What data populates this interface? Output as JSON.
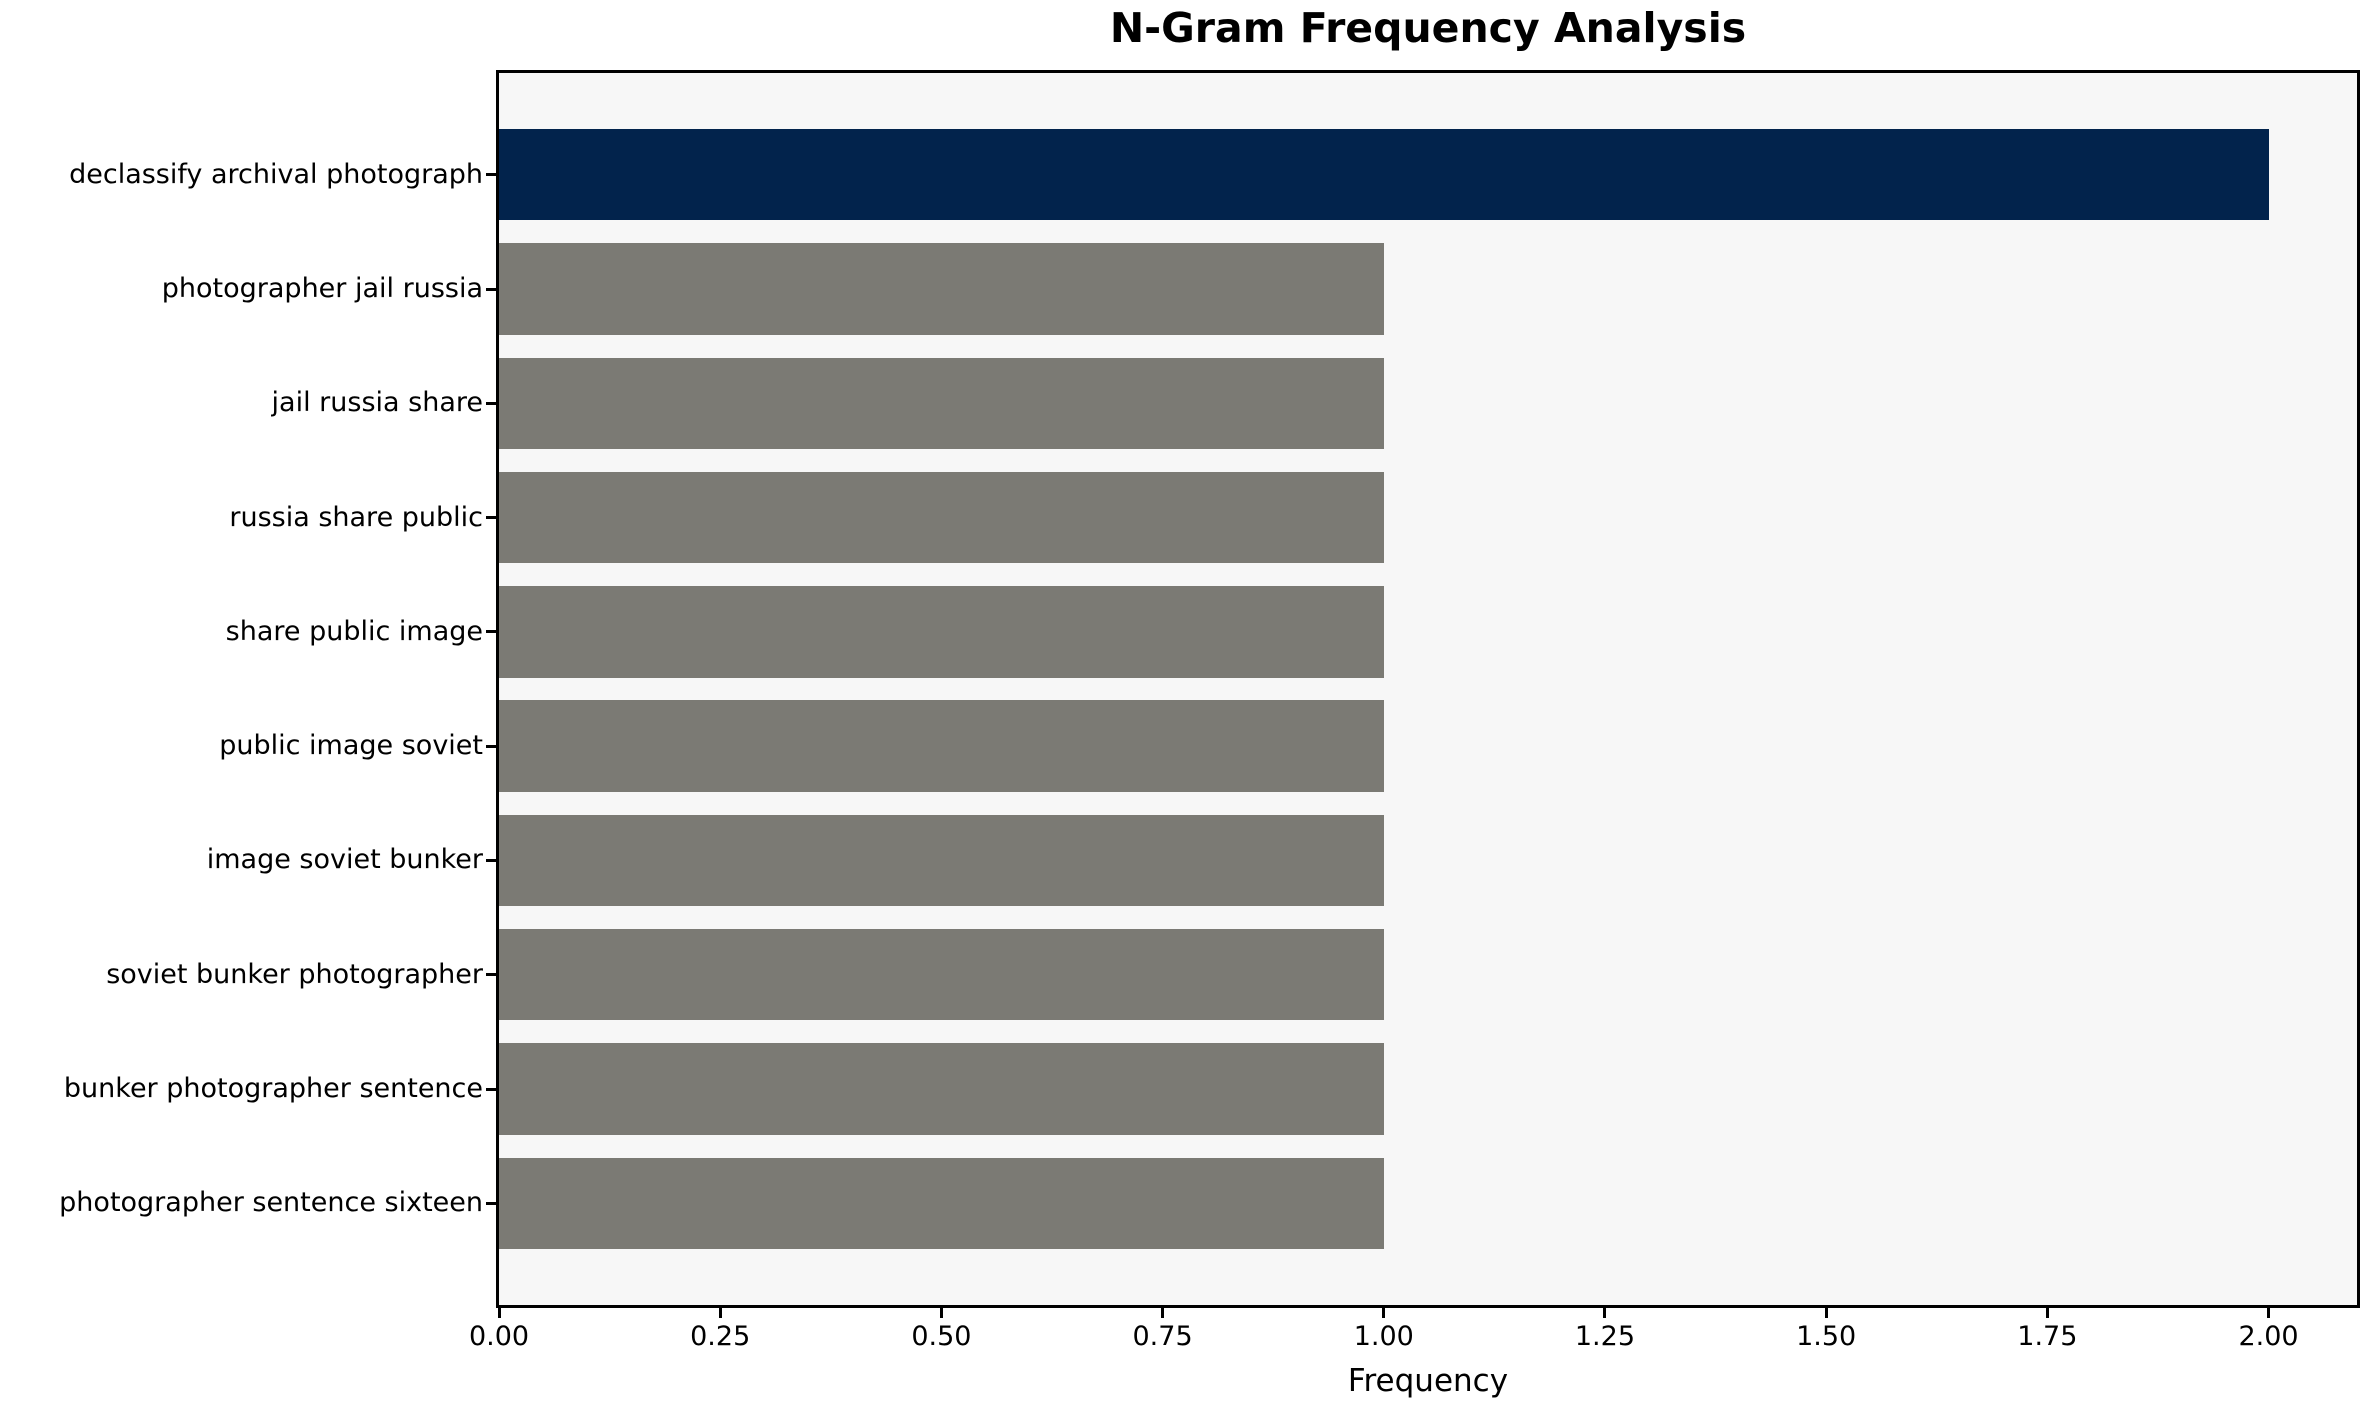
{
  "chart_data": {
    "type": "bar",
    "orientation": "horizontal",
    "title": "N-Gram Frequency Analysis",
    "xlabel": "Frequency",
    "ylabel": "",
    "categories": [
      "declassify archival photograph",
      "photographer jail russia",
      "jail russia share",
      "russia share public",
      "share public image",
      "public image soviet",
      "image soviet bunker",
      "soviet bunker photographer",
      "bunker photographer sentence",
      "photographer sentence sixteen"
    ],
    "values": [
      2.0,
      1.0,
      1.0,
      1.0,
      1.0,
      1.0,
      1.0,
      1.0,
      1.0,
      1.0
    ],
    "highlight_index": 0,
    "xlim": [
      0,
      2.1
    ],
    "xtick_values": [
      0,
      0.25,
      0.5,
      0.75,
      1.0,
      1.25,
      1.5,
      1.75,
      2.0
    ],
    "xtick_labels": [
      "0.00",
      "0.25",
      "0.50",
      "0.75",
      "1.00",
      "1.25",
      "1.50",
      "1.75",
      "2.00"
    ],
    "grid": false,
    "legend": "none",
    "colors": {
      "highlight_bar": "#02234C",
      "default_bar": "#7B7A74",
      "plot_bg": "#F7F7F7",
      "figure_bg": "#FFFFFF",
      "spine": "#000000",
      "text": "#000000"
    }
  }
}
